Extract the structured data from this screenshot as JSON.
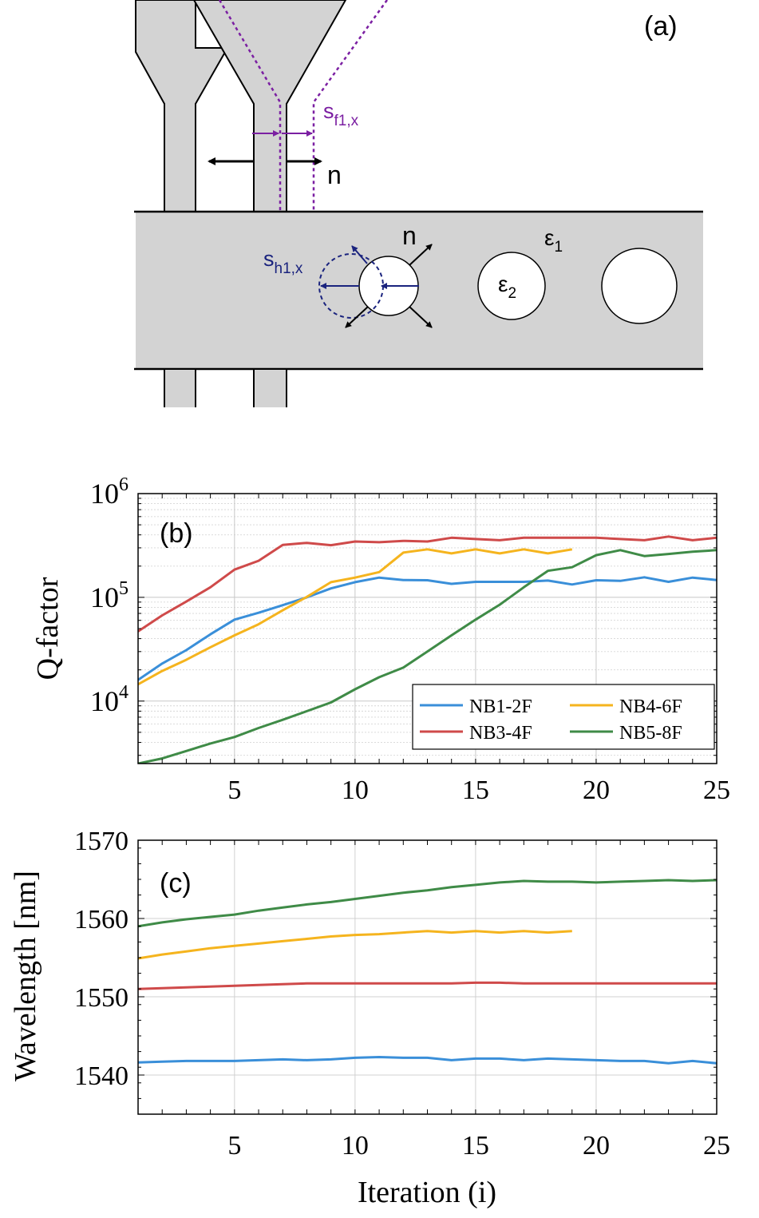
{
  "panel_a": {
    "label": "(a)",
    "n_label_arrow": "n",
    "n_label_hole": "n",
    "sf_label_main": "s",
    "sf_label_sub": "f1,x",
    "sh_label_main": "s",
    "sh_label_sub": "h1,x",
    "eps1_main": "ε",
    "eps1_sub": "1",
    "eps2_main": "ε",
    "eps2_sub": "2",
    "colors": {
      "material": "#d3d3d3",
      "sf": "#7b1fa2",
      "sh": "#1a237e"
    }
  },
  "chart_data": [
    {
      "type": "line",
      "panel_label": "(b)",
      "ylabel": "Q-factor",
      "xlabel": "",
      "yscale": "log",
      "xlim": [
        1,
        25
      ],
      "ylim": [
        2500,
        1000000
      ],
      "xticks": [
        "5",
        "10",
        "15",
        "20",
        "25"
      ],
      "ytick_base": "10",
      "ytick_exponents": [
        "4",
        "5",
        "6"
      ],
      "legend": {
        "position": "bottom-right",
        "ncol": 2
      },
      "series": [
        {
          "name": "NB1-2F",
          "color": "#3a8fd9",
          "x": [
            1,
            2,
            3,
            4,
            5,
            6,
            7,
            8,
            9,
            10,
            11,
            12,
            13,
            14,
            15,
            16,
            17,
            18,
            19,
            20,
            21,
            22,
            23,
            24,
            25
          ],
          "values": [
            16000,
            23000,
            31000,
            44000,
            61000,
            71000,
            84000,
            100000,
            122000,
            140000,
            155000,
            147000,
            146000,
            135000,
            141000,
            141000,
            141000,
            145000,
            133000,
            146000,
            144000,
            156000,
            141000,
            155000,
            147000
          ]
        },
        {
          "name": "NB3-4F",
          "color": "#cf4a4a",
          "x": [
            1,
            2,
            3,
            4,
            5,
            6,
            7,
            8,
            9,
            10,
            11,
            12,
            13,
            14,
            15,
            16,
            17,
            18,
            19,
            20,
            21,
            22,
            23,
            24,
            25
          ],
          "values": [
            47000,
            67000,
            91000,
            125000,
            185000,
            225000,
            320000,
            335000,
            318000,
            345000,
            340000,
            350000,
            345000,
            375000,
            365000,
            355000,
            375000,
            375000,
            375000,
            375000,
            365000,
            355000,
            385000,
            355000,
            375000
          ]
        },
        {
          "name": "NB4-6F",
          "color": "#f5b41e",
          "x": [
            1,
            2,
            3,
            4,
            5,
            6,
            7,
            8,
            9,
            10,
            11,
            12,
            13,
            14,
            15,
            16,
            17,
            18,
            19
          ],
          "values": [
            14500,
            19500,
            25000,
            33000,
            43000,
            55000,
            75000,
            101000,
            140000,
            155000,
            175000,
            270000,
            290000,
            265000,
            290000,
            265000,
            290000,
            265000,
            290000
          ]
        },
        {
          "name": "NB5-8F",
          "color": "#3f8b47",
          "x": [
            1,
            2,
            3,
            4,
            5,
            6,
            7,
            8,
            9,
            10,
            11,
            12,
            13,
            14,
            15,
            16,
            17,
            18,
            19,
            20,
            21,
            22,
            23,
            24,
            25
          ],
          "values": [
            2500,
            2800,
            3300,
            3900,
            4500,
            5500,
            6600,
            8000,
            9700,
            13000,
            17000,
            21000,
            30000,
            43000,
            61000,
            85000,
            125000,
            180000,
            195000,
            255000,
            285000,
            250000,
            262000,
            275000,
            285000
          ]
        }
      ]
    },
    {
      "type": "line",
      "panel_label": "(c)",
      "ylabel": "Wavelength [nm]",
      "xlabel": "Iteration (i)",
      "xlim": [
        1,
        25
      ],
      "ylim": [
        1535,
        1570
      ],
      "xticks": [
        "5",
        "10",
        "15",
        "20",
        "25"
      ],
      "yticks": [
        "1540",
        "1550",
        "1560",
        "1570"
      ],
      "series": [
        {
          "name": "NB1-2F",
          "color": "#3a8fd9",
          "x": [
            1,
            2,
            3,
            4,
            5,
            6,
            7,
            8,
            9,
            10,
            11,
            12,
            13,
            14,
            15,
            16,
            17,
            18,
            19,
            20,
            21,
            22,
            23,
            24,
            25
          ],
          "values": [
            1541.6,
            1541.7,
            1541.8,
            1541.8,
            1541.8,
            1541.9,
            1542.0,
            1541.9,
            1542.0,
            1542.2,
            1542.3,
            1542.2,
            1542.2,
            1541.9,
            1542.1,
            1542.1,
            1541.9,
            1542.1,
            1542.0,
            1541.9,
            1541.8,
            1541.8,
            1541.5,
            1541.8,
            1541.5
          ]
        },
        {
          "name": "NB3-4F",
          "color": "#cf4a4a",
          "x": [
            1,
            2,
            3,
            4,
            5,
            6,
            7,
            8,
            9,
            10,
            11,
            12,
            13,
            14,
            15,
            16,
            17,
            18,
            19,
            20,
            21,
            22,
            23,
            24,
            25
          ],
          "values": [
            1551.0,
            1551.1,
            1551.2,
            1551.3,
            1551.4,
            1551.5,
            1551.6,
            1551.7,
            1551.7,
            1551.7,
            1551.7,
            1551.7,
            1551.7,
            1551.7,
            1551.8,
            1551.8,
            1551.7,
            1551.7,
            1551.7,
            1551.7,
            1551.7,
            1551.7,
            1551.7,
            1551.7,
            1551.7
          ]
        },
        {
          "name": "NB4-6F",
          "color": "#f5b41e",
          "x": [
            1,
            2,
            3,
            4,
            5,
            6,
            7,
            8,
            9,
            10,
            11,
            12,
            13,
            14,
            15,
            16,
            17,
            18,
            19
          ],
          "values": [
            1554.9,
            1555.4,
            1555.8,
            1556.2,
            1556.5,
            1556.8,
            1557.1,
            1557.4,
            1557.7,
            1557.9,
            1558.0,
            1558.2,
            1558.4,
            1558.2,
            1558.4,
            1558.2,
            1558.4,
            1558.2,
            1558.4
          ]
        },
        {
          "name": "NB5-8F",
          "color": "#3f8b47",
          "x": [
            1,
            2,
            3,
            4,
            5,
            6,
            7,
            8,
            9,
            10,
            11,
            12,
            13,
            14,
            15,
            16,
            17,
            18,
            19,
            20,
            21,
            22,
            23,
            24,
            25
          ],
          "values": [
            1559.0,
            1559.5,
            1559.9,
            1560.2,
            1560.5,
            1561.0,
            1561.4,
            1561.8,
            1562.1,
            1562.5,
            1562.9,
            1563.3,
            1563.6,
            1564.0,
            1564.3,
            1564.6,
            1564.8,
            1564.7,
            1564.7,
            1564.6,
            1564.7,
            1564.8,
            1564.9,
            1564.8,
            1564.9
          ]
        }
      ]
    }
  ]
}
